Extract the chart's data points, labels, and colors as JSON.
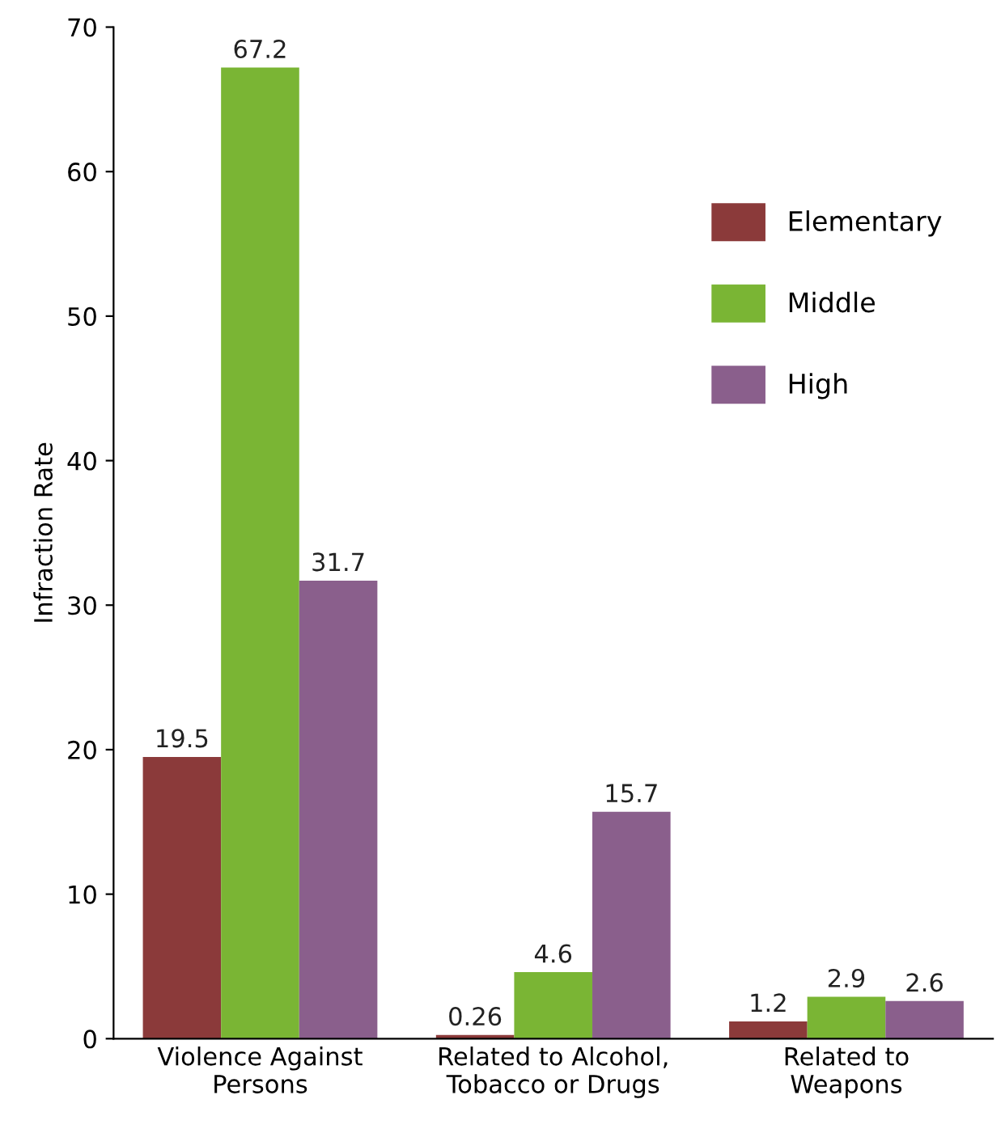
{
  "chart_data": {
    "type": "bar",
    "ylabel": "Infraction Rate",
    "categories": [
      "Violence Against\nPersons",
      "Related to Alcohol,\nTobacco or Drugs",
      "Related to\nWeapons"
    ],
    "series": [
      {
        "name": "Elementary",
        "color": "#8b3a3a",
        "values": [
          19.5,
          0.26,
          1.2
        ]
      },
      {
        "name": "Middle",
        "color": "#7ab534",
        "values": [
          67.2,
          4.6,
          2.9
        ]
      },
      {
        "name": "High",
        "color": "#8a5f8c",
        "values": [
          31.7,
          15.7,
          2.6
        ]
      }
    ],
    "ylim": [
      0,
      70
    ],
    "yticks": [
      0,
      10,
      20,
      30,
      40,
      50,
      60,
      70
    ],
    "grid": false,
    "legend": "top right",
    "data_labels": true
  }
}
